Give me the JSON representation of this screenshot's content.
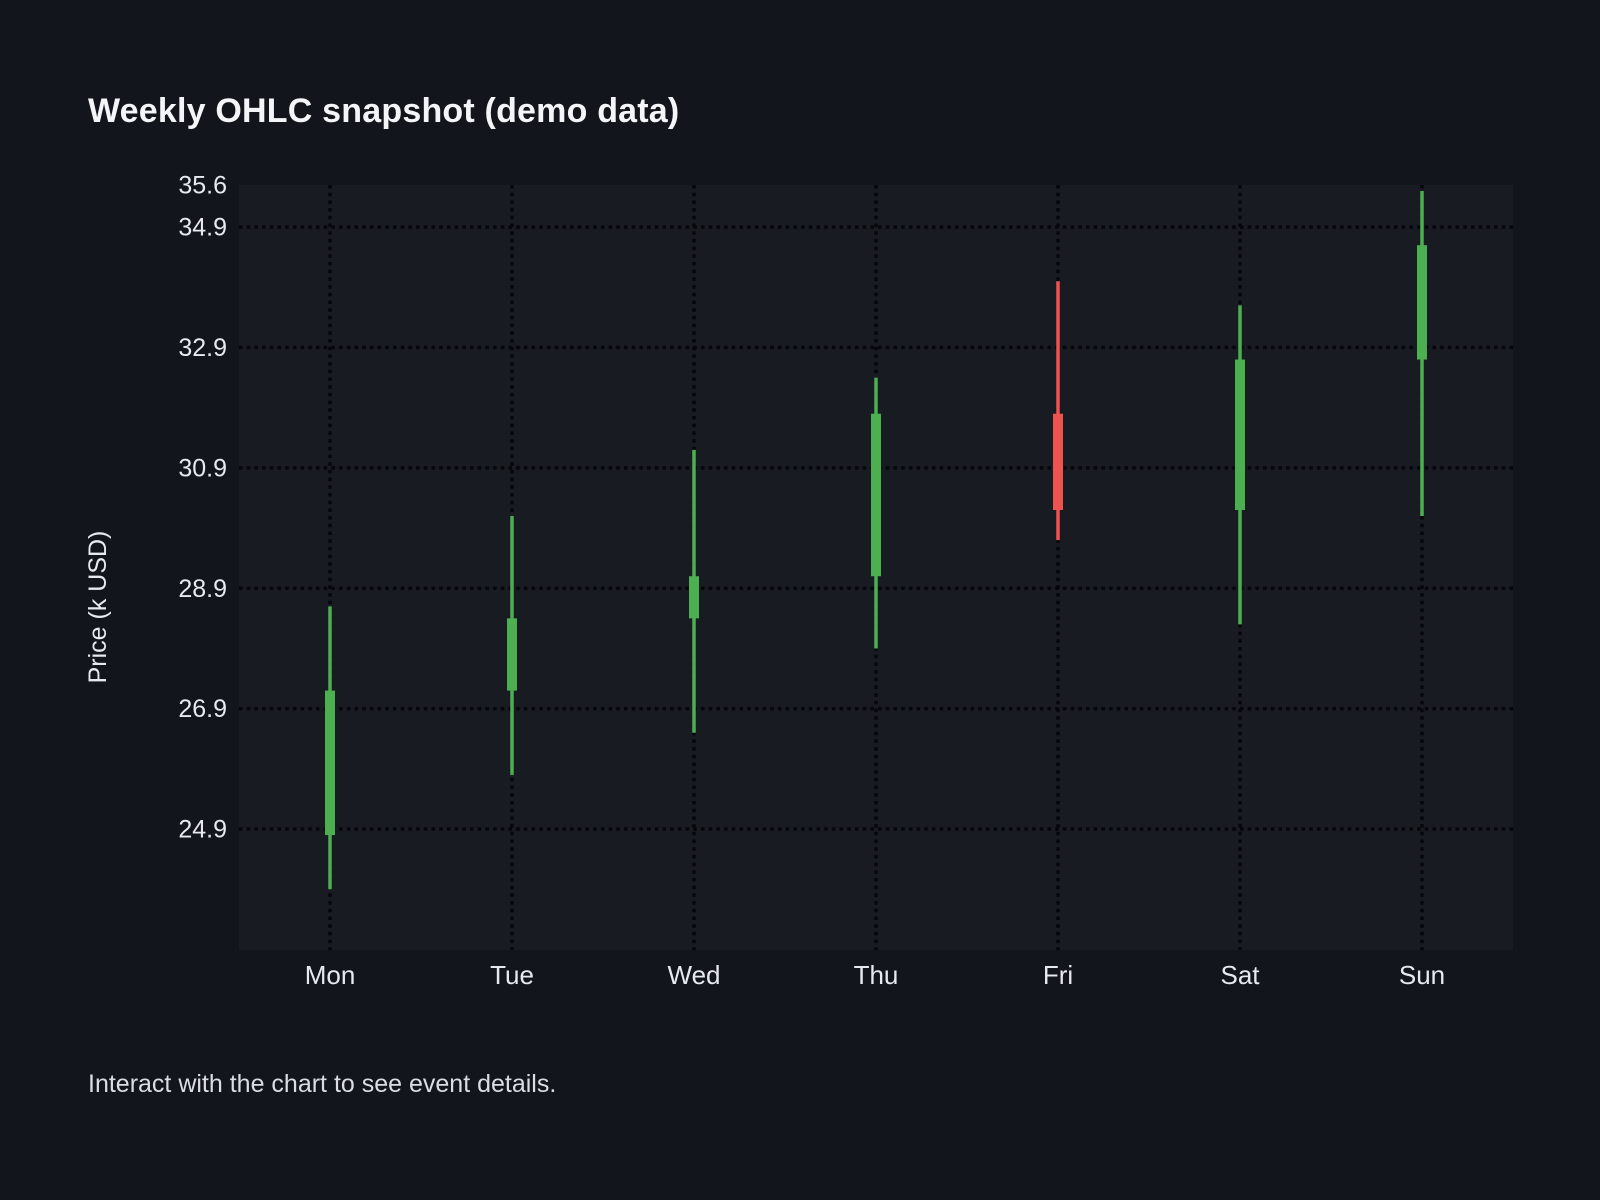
{
  "page": {
    "footer": "Interact with the chart to see event details."
  },
  "colors": {
    "background": "#12151b",
    "panel": "#181b22",
    "grid_dots": "#05070a",
    "up": "#4caf50",
    "down": "#ef5350",
    "tick_text": "#e6e9ed",
    "title_text": "#f3f5f8"
  },
  "chart_data": {
    "type": "candlestick",
    "title": "Weekly OHLC snapshot (demo data)",
    "xlabel": "",
    "ylabel": "Price (k USD)",
    "categories": [
      "Mon",
      "Tue",
      "Wed",
      "Thu",
      "Fri",
      "Sat",
      "Sun"
    ],
    "series": [
      {
        "name": "OHLC",
        "values": [
          {
            "day": "Mon",
            "open": 24.8,
            "high": 28.6,
            "low": 23.9,
            "close": 27.2,
            "direction": "up"
          },
          {
            "day": "Tue",
            "open": 27.2,
            "high": 30.1,
            "low": 25.8,
            "close": 28.4,
            "direction": "up"
          },
          {
            "day": "Wed",
            "open": 28.4,
            "high": 31.2,
            "low": 26.5,
            "close": 29.1,
            "direction": "up"
          },
          {
            "day": "Thu",
            "open": 29.1,
            "high": 32.4,
            "low": 27.9,
            "close": 31.8,
            "direction": "up"
          },
          {
            "day": "Fri",
            "open": 31.8,
            "high": 34.0,
            "low": 29.7,
            "close": 30.2,
            "direction": "down"
          },
          {
            "day": "Sat",
            "open": 30.2,
            "high": 33.6,
            "low": 28.3,
            "close": 32.7,
            "direction": "up"
          },
          {
            "day": "Sun",
            "open": 32.7,
            "high": 35.5,
            "low": 30.1,
            "close": 34.6,
            "direction": "up"
          }
        ]
      }
    ],
    "yticks": [
      35.6,
      34.9,
      32.9,
      30.9,
      28.9,
      26.9,
      24.9
    ],
    "ylim": [
      22.89,
      35.6
    ],
    "grid": "dotted-horizontal-and-vertical",
    "legend": "none",
    "up_color": "#4caf50",
    "down_color": "#ef5350"
  }
}
